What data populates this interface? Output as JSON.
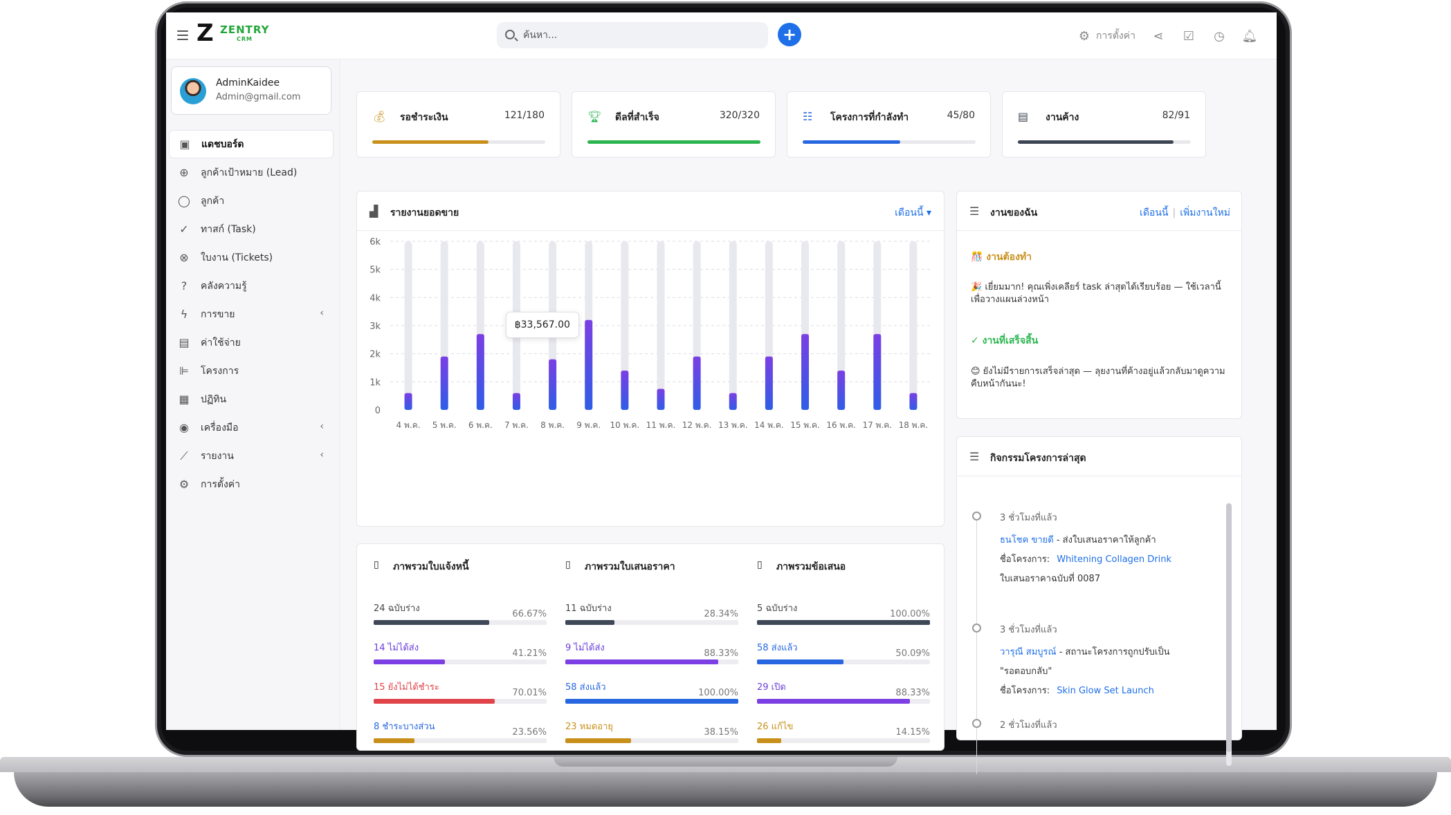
{
  "brand": {
    "name": "ZENTRY",
    "sub": "CRM"
  },
  "header": {
    "search_placeholder": "ค้นหา...",
    "add_label": "+",
    "settings_label": "การตั้งค่า"
  },
  "profile": {
    "name": "AdminKaidee",
    "email": "Admin@gmail.com"
  },
  "sidebar": {
    "items": [
      {
        "label": "แดชบอร์ด",
        "icon": "dashboard-icon"
      },
      {
        "label": "ลูกค้าเป้าหมาย (Lead)",
        "icon": "target-icon"
      },
      {
        "label": "ลูกค้า",
        "icon": "user-icon"
      },
      {
        "label": "ทาสก์ (Task)",
        "icon": "check-circle-icon"
      },
      {
        "label": "ใบงาน (Tickets)",
        "icon": "lifebuoy-icon"
      },
      {
        "label": "คลังความรู้",
        "icon": "question-icon"
      },
      {
        "label": "การขาย",
        "icon": "bolt-icon"
      },
      {
        "label": "ค่าใช้จ่าย",
        "icon": "file-icon"
      },
      {
        "label": "โครงการ",
        "icon": "gantt-icon"
      },
      {
        "label": "ปฏิทิน",
        "icon": "calendar-icon"
      },
      {
        "label": "เครื่องมือ",
        "icon": "tools-icon"
      },
      {
        "label": "รายงาน",
        "icon": "chart-line-icon"
      },
      {
        "label": "การตั้งค่า",
        "icon": "gear-icon"
      }
    ]
  },
  "stats": [
    {
      "label": "รอชำระเงิน",
      "value": "121/180",
      "fraction": 0.672,
      "color": "#c8901a",
      "icon": "money-bag-icon"
    },
    {
      "label": "ดีลที่สำเร็จ",
      "value": "320/320",
      "fraction": 1.0,
      "color": "#2bb550",
      "icon": "trophy-icon"
    },
    {
      "label": "โครงการที่กำลังทำ",
      "value": "45/80",
      "fraction": 0.5625,
      "color": "#2766e0",
      "icon": "list-icon"
    },
    {
      "label": "งานค้าง",
      "value": "82/91",
      "fraction": 0.9,
      "color": "#3c4552",
      "icon": "document-icon"
    }
  ],
  "sales_report": {
    "title": "รายงานยอดขาย",
    "period": "เดือนนี้",
    "tooltip": "฿33,567.00"
  },
  "chart_data": {
    "type": "bar",
    "categories": [
      "4 พ.ค.",
      "5 พ.ค.",
      "6 พ.ค.",
      "7 พ.ค.",
      "8 พ.ค.",
      "9 พ.ค.",
      "10 พ.ค.",
      "11 พ.ค.",
      "12 พ.ค.",
      "13 พ.ค.",
      "14 พ.ค.",
      "15 พ.ค.",
      "16 พ.ค.",
      "17 พ.ค.",
      "18 พ.ค."
    ],
    "values": [
      600,
      1900,
      2700,
      600,
      1800,
      3200,
      1400,
      750,
      1900,
      600,
      1900,
      2700,
      1400,
      2700,
      600
    ],
    "yticks": [
      "0",
      "1k",
      "2k",
      "3k",
      "4k",
      "5k",
      "6k"
    ],
    "ylim": [
      0,
      6000
    ],
    "grid": true,
    "bar_color_top": "#7b3fe4",
    "bar_color_bottom": "#2f5de6",
    "track_color": "#e8e8ef"
  },
  "tasks": {
    "title": "งานของฉัน",
    "link_month": "เดือนนี้",
    "link_new": "เพิ่มงานใหม่",
    "todo_title": "🎊 งานต้องทำ",
    "todo_text": "🎉 เยี่ยมมาก! คุณเพิ่งเคลียร์ task ล่าสุดได้เรียบร้อย — ใช้เวลานี้เพื่อวางแผนล่วงหน้า",
    "done_title": "✓ งานที่เสร็จสิ้น",
    "done_text": "😊 ยังไม่มีรายการเสร็จล่าสุด — ลุยงานที่ค้างอยู่แล้วกลับมาดูความคืบหน้ากันนะ!"
  },
  "activity": {
    "title": "กิจกรรมโครงการล่าสุด",
    "project_label": "ชื่อโครงการ:",
    "items": [
      {
        "time": "3 ชั่วโมงที่แล้ว",
        "user": "ธนโชค ขายดี",
        "action": " - ส่งใบเสนอราคาให้ลูกค้า",
        "project": "Whitening Collagen Drink",
        "note": "ใบเสนอราคาฉบับที่ 0087"
      },
      {
        "time": "3 ชั่วโมงที่แล้ว",
        "user": "วารุณี สมบูรณ์",
        "action": " - สถานะโครงการถูกปรับเป็น",
        "note": "\"รอตอบกลับ\"",
        "project": "Skin Glow Set Launch"
      },
      {
        "time": "2 ชั่วโมงที่แล้ว"
      }
    ]
  },
  "overview": [
    {
      "title": "ภาพรวมใบแจ้งหนี้",
      "rows": [
        {
          "label": "24 ฉบับร่าง",
          "pct": "66.67%",
          "fraction": 0.6667,
          "color": "#3f4856",
          "label_color": "#444"
        },
        {
          "label": "14 ไม่ได้ส่ง",
          "pct": "41.21%",
          "fraction": 0.4121,
          "color": "#7b3fe4",
          "label_color": "#6a3fd8"
        },
        {
          "label": "15 ยังไม่ได้ชำระ",
          "pct": "70.01%",
          "fraction": 0.7001,
          "color": "#e0434a",
          "label_color": "#e0434a"
        },
        {
          "label": "8 ชำระบางส่วน",
          "pct": "23.56%",
          "fraction": 0.2356,
          "color": "#c8901a",
          "label_color": "#2766e0"
        }
      ]
    },
    {
      "title": "ภาพรวมใบเสนอราคา",
      "rows": [
        {
          "label": "11 ฉบับร่าง",
          "pct": "28.34%",
          "fraction": 0.2834,
          "color": "#3f4856",
          "label_color": "#444"
        },
        {
          "label": "9 ไม่ได้ส่ง",
          "pct": "88.33%",
          "fraction": 0.8833,
          "color": "#7b3fe4",
          "label_color": "#6a3fd8"
        },
        {
          "label": "58 ส่งแล้ว",
          "pct": "100.00%",
          "fraction": 1.0,
          "color": "#2766e0",
          "label_color": "#2766e0"
        },
        {
          "label": "23 หมดอายุ",
          "pct": "38.15%",
          "fraction": 0.3815,
          "color": "#c8901a",
          "label_color": "#c8901a"
        }
      ]
    },
    {
      "title": "ภาพรวมข้อเสนอ",
      "rows": [
        {
          "label": "5 ฉบับร่าง",
          "pct": "100.00%",
          "fraction": 1.0,
          "color": "#3f4856",
          "label_color": "#444"
        },
        {
          "label": "58 ส่งแล้ว",
          "pct": "50.09%",
          "fraction": 0.5009,
          "color": "#2766e0",
          "label_color": "#2766e0"
        },
        {
          "label": "29 เปิด",
          "pct": "88.33%",
          "fraction": 0.8833,
          "color": "#7b3fe4",
          "label_color": "#6a3fd8"
        },
        {
          "label": "26 แก้ไข",
          "pct": "14.15%",
          "fraction": 0.1415,
          "color": "#c8901a",
          "label_color": "#c8901a"
        }
      ]
    }
  ]
}
